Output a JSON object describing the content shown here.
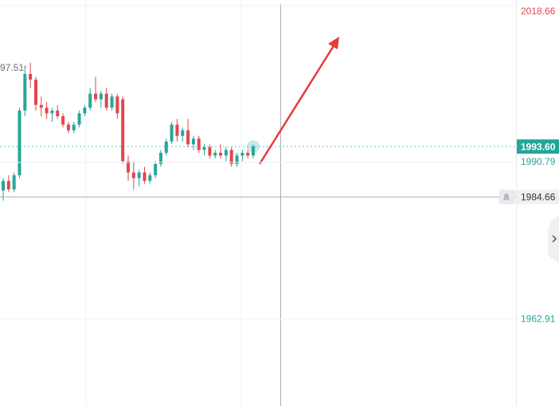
{
  "chart_data": {
    "type": "candlestick",
    "open": [
      1985.8,
      1987.5,
      1986.0,
      1988.5,
      2000.0,
      2006.5,
      2005.5,
      2001.0,
      2000.5,
      1999.5,
      2000.0,
      1999.0,
      1997.5,
      1996.5,
      1997.5,
      1999.5,
      2000.5,
      2003.0,
      2002.0,
      2003.0,
      2000.5,
      2002.5,
      2002.0,
      1991.0,
      1989.0,
      1988.0,
      1989.0,
      1987.5,
      1988.5,
      1990.5,
      1992.5,
      1994.5,
      1997.5,
      1995.5,
      1996.5,
      1994.0,
      1995.0,
      1993.0,
      1993.5,
      1992.0,
      1992.5,
      1992.0,
      1993.0,
      1990.5,
      1992.0,
      1992.5,
      1992.0
    ],
    "high": [
      1988.0,
      1988.5,
      1989.0,
      2000.5,
      2008.0,
      2008.5,
      2006.0,
      2002.5,
      2001.5,
      2000.5,
      2001.0,
      1999.5,
      1998.0,
      1998.0,
      2000.0,
      2001.0,
      2004.0,
      2006.0,
      2003.5,
      2004.0,
      2003.0,
      2003.0,
      2002.5,
      1992.0,
      1991.0,
      1989.5,
      1990.0,
      1989.0,
      1991.0,
      1993.0,
      1995.0,
      1998.0,
      1998.5,
      1997.0,
      1998.5,
      1995.5,
      1995.5,
      1994.0,
      1994.0,
      1993.0,
      1994.0,
      1993.5,
      1993.5,
      1992.5,
      1993.0,
      1993.0,
      1994.0
    ],
    "low": [
      1984.0,
      1985.5,
      1985.5,
      1988.0,
      1999.0,
      2004.0,
      2000.0,
      1999.0,
      1998.5,
      1998.0,
      1998.5,
      1997.0,
      1996.0,
      1996.0,
      1997.0,
      1999.0,
      2000.0,
      2001.5,
      2000.5,
      2000.0,
      2000.0,
      1998.5,
      1990.5,
      1987.5,
      1986.0,
      1986.5,
      1987.0,
      1987.0,
      1988.0,
      1990.0,
      1992.0,
      1994.0,
      1994.5,
      1994.5,
      1993.5,
      1993.0,
      1992.5,
      1992.0,
      1991.5,
      1991.5,
      1991.5,
      1991.0,
      1990.0,
      1990.0,
      1991.0,
      1991.5,
      1991.5
    ],
    "close": [
      1987.5,
      1986.0,
      1988.5,
      2000.0,
      2006.5,
      2005.5,
      2001.0,
      2000.5,
      1999.5,
      2000.0,
      1999.0,
      1997.5,
      1996.5,
      1997.5,
      1999.5,
      2000.5,
      2003.0,
      2002.0,
      2003.0,
      2000.5,
      2002.5,
      1999.5,
      1991.0,
      1989.0,
      1988.0,
      1989.0,
      1987.5,
      1988.5,
      1990.5,
      1992.5,
      1994.5,
      1997.5,
      1995.5,
      1996.5,
      1994.0,
      1995.0,
      1993.0,
      1993.5,
      1992.0,
      1992.5,
      1992.0,
      1993.0,
      1990.5,
      1992.0,
      1992.5,
      1992.0,
      1993.6
    ],
    "up_color": "#26a69a",
    "down_color": "#e0474c",
    "ylim": [
      1947.51,
      2019.64
    ],
    "yticks": [
      2018.66,
      1990.79,
      1962.91
    ],
    "grid": true,
    "current_price": {
      "value": 1993.6,
      "label": "1993.60"
    },
    "crosshair_price": 1984.66,
    "annotation": "97.51"
  }
}
